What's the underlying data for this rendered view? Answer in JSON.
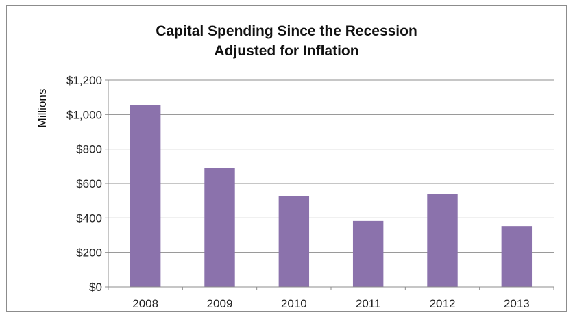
{
  "chart_data": {
    "type": "bar",
    "title": "Capital Spending Since the Recession",
    "subtitle": "Adjusted for Inflation",
    "ylabel": "Millions",
    "xlabel": "",
    "categories": [
      "2008",
      "2009",
      "2010",
      "2011",
      "2012",
      "2013"
    ],
    "values": [
      1055,
      690,
      528,
      382,
      537,
      353
    ],
    "ylim": [
      0,
      1200
    ],
    "yticks": [
      0,
      200,
      400,
      600,
      800,
      1000,
      1200
    ],
    "ytick_labels": [
      "$0",
      "$200",
      "$400",
      "$600",
      "$800",
      "$1,000",
      "$1,200"
    ],
    "grid": true,
    "legend": "none",
    "bar_color": "#8B72AC"
  }
}
